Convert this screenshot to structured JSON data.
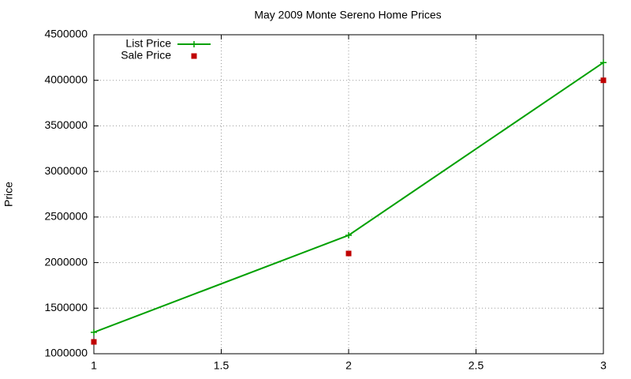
{
  "chart_data": {
    "type": "line",
    "title": "May 2009 Monte Sereno Home Prices",
    "y_label": "Price",
    "x": [
      1,
      2,
      3
    ],
    "series": [
      {
        "name": "List Price",
        "color": "#00a000",
        "style": "linespoints",
        "values": [
          1235000,
          2300000,
          4195000
        ]
      },
      {
        "name": "Sale Price",
        "color": "#c00000",
        "style": "points",
        "values": [
          1130000,
          2100000,
          4000000
        ]
      }
    ],
    "xlim": [
      1,
      3
    ],
    "xticks": [
      1,
      1.5,
      2,
      2.5,
      3
    ],
    "ylim": [
      1000000,
      4500000
    ],
    "yticks": [
      1000000,
      1500000,
      2000000,
      2500000,
      3000000,
      3500000,
      4000000,
      4500000
    ],
    "grid": true,
    "legend": "top-left"
  }
}
